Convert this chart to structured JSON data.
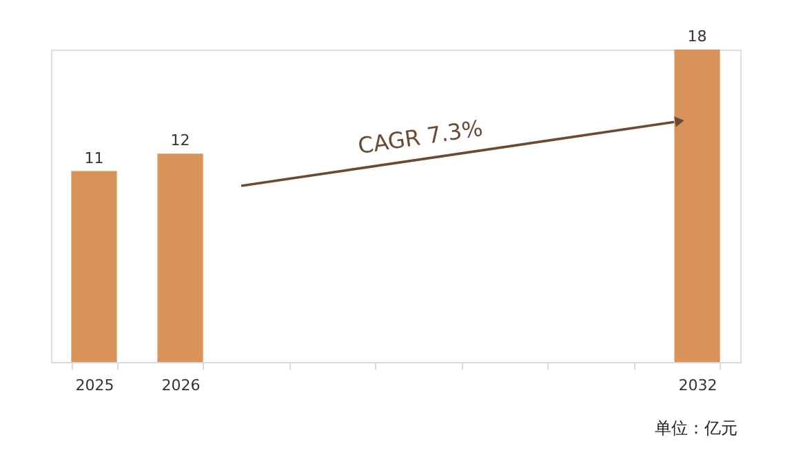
{
  "chart_data": {
    "type": "bar",
    "categories": [
      "2025",
      "2026",
      null,
      null,
      null,
      null,
      null,
      "2032"
    ],
    "values": [
      11,
      12,
      null,
      null,
      null,
      null,
      null,
      18
    ],
    "color": "#d8935a",
    "data_labels": true,
    "tick_labels": "x",
    "annotations": [
      "CAGR 7.3%",
      "单位：亿元"
    ]
  }
}
